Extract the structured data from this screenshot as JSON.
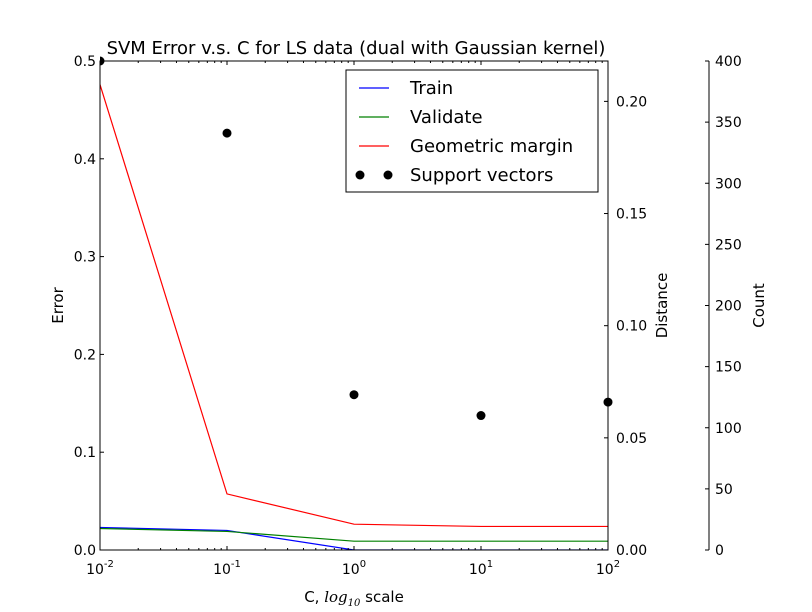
{
  "chart_data": {
    "type": "line",
    "title": "SVM Error v.s. C for LS data (dual with Gaussian kernel)",
    "xlabel": {
      "prefix": "C, ",
      "math_base": "log",
      "math_sub": "10",
      "suffix": " scale"
    },
    "xscale": "log",
    "xlim": [
      0.01,
      100
    ],
    "x": [
      0.01,
      0.1,
      1,
      10,
      100
    ],
    "x_ticks": [
      {
        "base": "10",
        "exp": "-2"
      },
      {
        "base": "10",
        "exp": "-1"
      },
      {
        "base": "10",
        "exp": "0"
      },
      {
        "base": "10",
        "exp": "1"
      },
      {
        "base": "10",
        "exp": "2"
      }
    ],
    "axes": {
      "error": {
        "label": "Error",
        "lim": [
          0,
          0.5
        ],
        "ticks": [
          "0.0",
          "0.1",
          "0.2",
          "0.3",
          "0.4",
          "0.5"
        ]
      },
      "distance": {
        "label": "Distance",
        "lim": [
          0,
          0.218
        ],
        "ticks": [
          "0.00",
          "0.05",
          "0.10",
          "0.15",
          "0.20"
        ]
      },
      "count": {
        "label": "Count",
        "lim": [
          0,
          400
        ],
        "ticks": [
          "0",
          "50",
          "100",
          "150",
          "200",
          "250",
          "300",
          "350",
          "400"
        ]
      }
    },
    "series": [
      {
        "name": "Train",
        "axis": "error",
        "style": "line",
        "color": "#0000ff",
        "values": [
          0.023,
          0.02,
          0.0,
          0.0,
          0.0
        ]
      },
      {
        "name": "Validate",
        "axis": "error",
        "style": "line",
        "color": "#008000",
        "values": [
          0.022,
          0.019,
          0.009,
          0.009,
          0.009
        ]
      },
      {
        "name": "Geometric margin",
        "axis": "distance",
        "style": "line",
        "color": "#ff0000",
        "values": [
          0.2075,
          0.025,
          0.0115,
          0.0105,
          0.0105
        ]
      },
      {
        "name": "Support vectors",
        "axis": "count",
        "style": "scatter",
        "color": "#000000",
        "values": [
          400,
          341,
          127,
          110,
          121
        ]
      }
    ],
    "legend": "top-right",
    "grid": false
  }
}
